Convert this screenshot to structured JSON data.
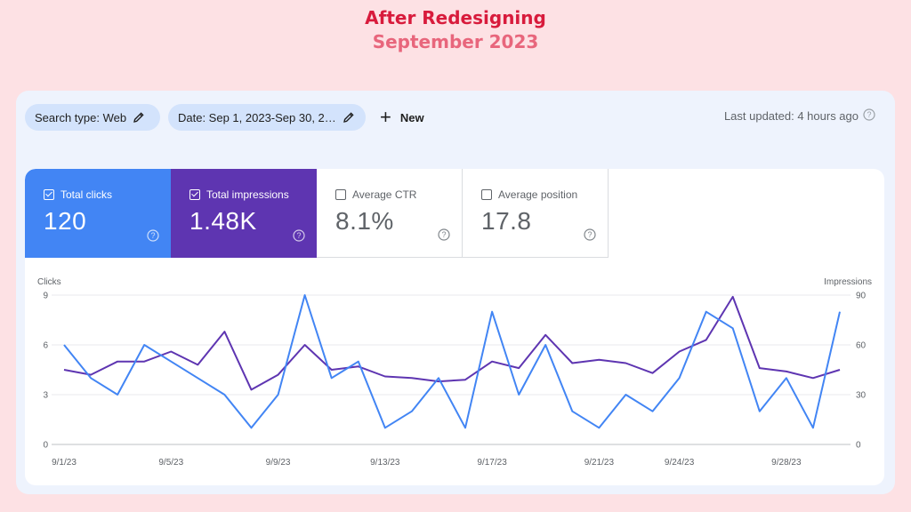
{
  "slide": {
    "title": "After Redesigning",
    "subtitle": "September 2023"
  },
  "filters": {
    "search_type": "Search type: Web",
    "date": "Date: Sep 1, 2023-Sep 30, 2…",
    "new_label": "New"
  },
  "status": {
    "last_updated": "Last updated: 4 hours ago"
  },
  "metrics": {
    "clicks": {
      "label": "Total clicks",
      "value": "120",
      "checked": true,
      "color": "#4285f4"
    },
    "impressions": {
      "label": "Total impressions",
      "value": "1.48K",
      "checked": true,
      "color": "#5e35b1"
    },
    "ctr": {
      "label": "Average CTR",
      "value": "8.1%",
      "checked": false
    },
    "position": {
      "label": "Average position",
      "value": "17.8",
      "checked": false
    }
  },
  "chart_data": {
    "type": "line",
    "x": [
      "9/1/23",
      "9/2/23",
      "9/3/23",
      "9/4/23",
      "9/5/23",
      "9/6/23",
      "9/7/23",
      "9/8/23",
      "9/9/23",
      "9/10/23",
      "9/11/23",
      "9/12/23",
      "9/13/23",
      "9/14/23",
      "9/15/23",
      "9/16/23",
      "9/17/23",
      "9/18/23",
      "9/19/23",
      "9/20/23",
      "9/21/23",
      "9/22/23",
      "9/23/23",
      "9/24/23",
      "9/25/23",
      "9/26/23",
      "9/27/23",
      "9/28/23",
      "9/29/23",
      "9/30/23"
    ],
    "xticks": [
      "9/1/23",
      "9/5/23",
      "9/9/23",
      "9/13/23",
      "9/17/23",
      "9/21/23",
      "9/24/23",
      "9/28/23"
    ],
    "xtick_index": [
      0,
      4,
      8,
      12,
      16,
      20,
      23,
      27
    ],
    "left_axis": {
      "label": "Clicks",
      "ticks": [
        0,
        3,
        6,
        9
      ],
      "ylim": [
        0,
        9
      ]
    },
    "right_axis": {
      "label": "Impressions",
      "ticks": [
        0,
        30,
        60,
        90
      ],
      "ylim": [
        0,
        90
      ]
    },
    "series": [
      {
        "name": "Clicks",
        "axis": "left",
        "color": "#4285f4",
        "values": [
          6,
          4,
          3,
          6,
          5,
          4,
          3,
          1,
          3,
          9,
          4,
          5,
          1,
          2,
          4,
          1,
          8,
          3,
          6,
          2,
          1,
          3,
          2,
          4,
          8,
          7,
          2,
          4,
          1,
          8
        ]
      },
      {
        "name": "Impressions",
        "axis": "right",
        "color": "#5e35b1",
        "values": [
          45,
          42,
          50,
          50,
          56,
          48,
          68,
          33,
          42,
          60,
          45,
          47,
          41,
          40,
          38,
          39,
          50,
          46,
          66,
          49,
          51,
          49,
          43,
          56,
          63,
          89,
          46,
          44,
          40,
          45
        ]
      }
    ],
    "grid": true
  }
}
